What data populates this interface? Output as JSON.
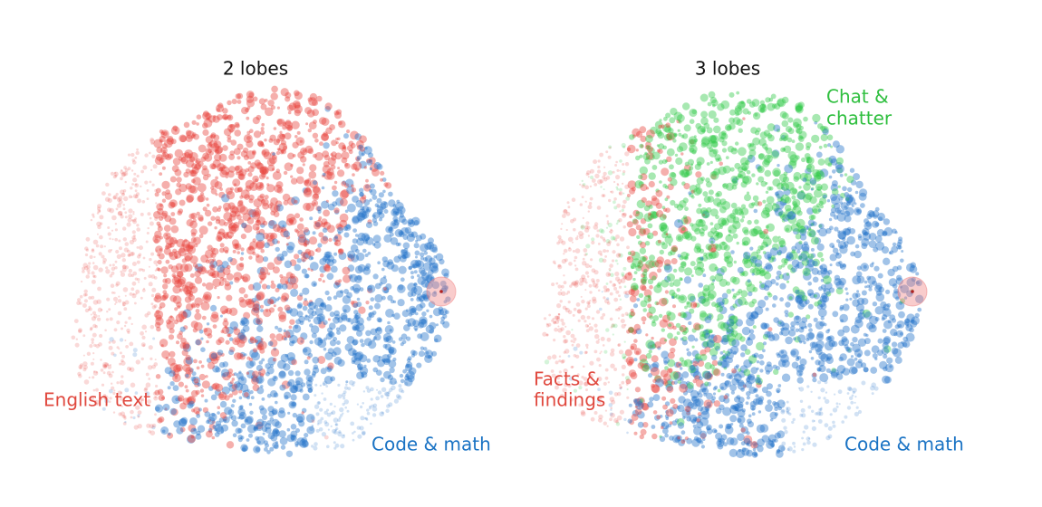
{
  "panels": [
    {
      "title": "2 lobes",
      "labels": [
        {
          "lines": [
            "English text"
          ]
        },
        {
          "lines": [
            "Code & math"
          ]
        }
      ]
    },
    {
      "title": "3 lobes",
      "labels": [
        {
          "lines": [
            "Chat &",
            "chatter"
          ]
        },
        {
          "lines": [
            "Facts &",
            "findings"
          ]
        },
        {
          "lines": [
            "Code & math"
          ]
        }
      ]
    }
  ]
}
